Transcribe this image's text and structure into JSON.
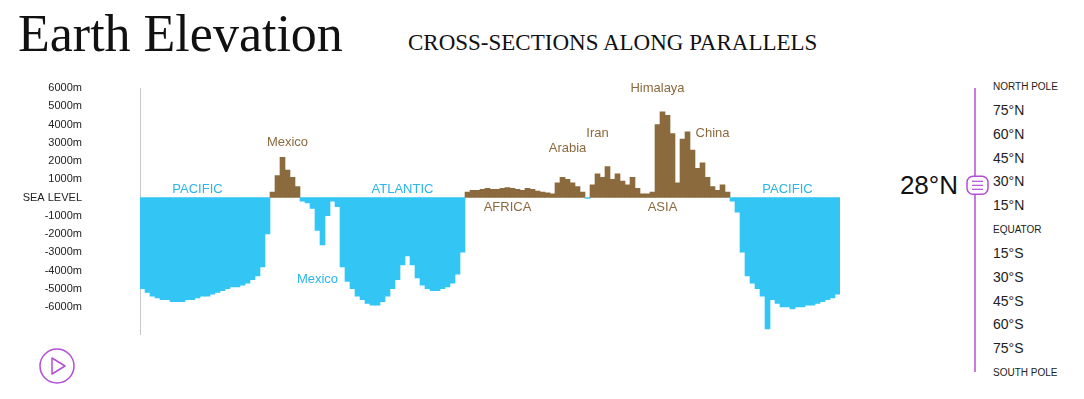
{
  "chart_data": {
    "type": "bar",
    "title": "Earth Elevation",
    "subtitle": "CROSS-SECTIONS ALONG PARALLELS",
    "categories": [
      null,
      null,
      null,
      null,
      null,
      null,
      null,
      null,
      null,
      null,
      null,
      null,
      null,
      null,
      null,
      null,
      null,
      null,
      null,
      null,
      null,
      null,
      null,
      null,
      null,
      null,
      null,
      null,
      null,
      null,
      null,
      null,
      null,
      null,
      null,
      null,
      null,
      null,
      null,
      null,
      null,
      null,
      null,
      null,
      null,
      null,
      null,
      null,
      null,
      null,
      null,
      null,
      null,
      null,
      null,
      null,
      null,
      null,
      null,
      null,
      null,
      null,
      null,
      null,
      null,
      null,
      null,
      null,
      null,
      null,
      null,
      null,
      null,
      null,
      null,
      null,
      null,
      null,
      null,
      null,
      null,
      null,
      null,
      null,
      null,
      null,
      null,
      null,
      null,
      null,
      null,
      null,
      null,
      null,
      null,
      null,
      null,
      null,
      null,
      null,
      null,
      null,
      null,
      null,
      null,
      null,
      null,
      null,
      null,
      null,
      null,
      null,
      null,
      null,
      null,
      null,
      null,
      null,
      null,
      null,
      null,
      null,
      null,
      null,
      null,
      null,
      null,
      null,
      null,
      null,
      null,
      null,
      null,
      null,
      null,
      null,
      null,
      null,
      null,
      null
    ],
    "values": [
      -5000,
      -5200,
      -5400,
      -5500,
      -5600,
      -5600,
      -5700,
      -5700,
      -5700,
      -5600,
      -5600,
      -5500,
      -5400,
      -5400,
      -5300,
      -5200,
      -5100,
      -5000,
      -4900,
      -4900,
      -4800,
      -4700,
      -4500,
      -4300,
      -3800,
      -2000,
      300,
      1200,
      2200,
      1500,
      1100,
      600,
      -200,
      -300,
      -600,
      -1800,
      -2600,
      -1000,
      -200,
      -500,
      -3800,
      -4600,
      -5000,
      -5400,
      -5600,
      -5800,
      -5900,
      -5900,
      -5700,
      -5400,
      -5000,
      -4500,
      -3700,
      -3200,
      -3700,
      -4400,
      -4800,
      -5000,
      -5100,
      -5100,
      -5000,
      -4900,
      -4700,
      -4200,
      -3000,
      300,
      400,
      400,
      450,
      500,
      450,
      450,
      500,
      550,
      500,
      450,
      400,
      500,
      450,
      350,
      300,
      250,
      200,
      800,
      1100,
      1000,
      800,
      600,
      300,
      -50,
      700,
      1300,
      1100,
      1700,
      1000,
      1300,
      900,
      700,
      1100,
      500,
      200,
      200,
      300,
      4000,
      4700,
      4500,
      3500,
      800,
      3200,
      3600,
      2600,
      1600,
      1900,
      1100,
      600,
      400,
      700,
      300,
      -200,
      -800,
      -3000,
      -4300,
      -4700,
      -5000,
      -5400,
      -7200,
      -5600,
      -5800,
      -6000,
      -6000,
      -6100,
      -6000,
      -6000,
      -5900,
      -5900,
      -5800,
      -5700,
      -5600,
      -5500,
      -5300
    ],
    "colors": [
      "#33c6f5",
      "#33c6f5",
      "#33c6f5",
      "#33c6f5",
      "#33c6f5",
      "#33c6f5",
      "#33c6f5",
      "#33c6f5",
      "#33c6f5",
      "#33c6f5",
      "#33c6f5",
      "#33c6f5",
      "#33c6f5",
      "#33c6f5",
      "#33c6f5",
      "#33c6f5",
      "#33c6f5",
      "#33c6f5",
      "#33c6f5",
      "#33c6f5",
      "#33c6f5",
      "#33c6f5",
      "#33c6f5",
      "#33c6f5",
      "#33c6f5",
      "#33c6f5",
      "#8b6a3e",
      "#8b6a3e",
      "#8b6a3e",
      "#8b6a3e",
      "#8b6a3e",
      "#8b6a3e",
      "#33c6f5",
      "#33c6f5",
      "#33c6f5",
      "#33c6f5",
      "#33c6f5",
      "#33c6f5",
      "#33c6f5",
      "#33c6f5",
      "#33c6f5",
      "#33c6f5",
      "#33c6f5",
      "#33c6f5",
      "#33c6f5",
      "#33c6f5",
      "#33c6f5",
      "#33c6f5",
      "#33c6f5",
      "#33c6f5",
      "#33c6f5",
      "#33c6f5",
      "#33c6f5",
      "#33c6f5",
      "#33c6f5",
      "#33c6f5",
      "#33c6f5",
      "#33c6f5",
      "#33c6f5",
      "#33c6f5",
      "#33c6f5",
      "#33c6f5",
      "#33c6f5",
      "#33c6f5",
      "#33c6f5",
      "#8b6a3e",
      "#8b6a3e",
      "#8b6a3e",
      "#8b6a3e",
      "#8b6a3e",
      "#8b6a3e",
      "#8b6a3e",
      "#8b6a3e",
      "#8b6a3e",
      "#8b6a3e",
      "#8b6a3e",
      "#8b6a3e",
      "#8b6a3e",
      "#8b6a3e",
      "#8b6a3e",
      "#8b6a3e",
      "#8b6a3e",
      "#8b6a3e",
      "#8b6a3e",
      "#8b6a3e",
      "#8b6a3e",
      "#8b6a3e",
      "#8b6a3e",
      "#8b6a3e",
      "#33c6f5",
      "#8b6a3e",
      "#8b6a3e",
      "#8b6a3e",
      "#8b6a3e",
      "#8b6a3e",
      "#8b6a3e",
      "#8b6a3e",
      "#8b6a3e",
      "#8b6a3e",
      "#8b6a3e",
      "#8b6a3e",
      "#8b6a3e",
      "#8b6a3e",
      "#8b6a3e",
      "#8b6a3e",
      "#8b6a3e",
      "#8b6a3e",
      "#8b6a3e",
      "#8b6a3e",
      "#8b6a3e",
      "#8b6a3e",
      "#8b6a3e",
      "#8b6a3e",
      "#8b6a3e",
      "#8b6a3e",
      "#8b6a3e",
      "#8b6a3e",
      "#8b6a3e",
      "#33c6f5",
      "#33c6f5",
      "#33c6f5",
      "#33c6f5",
      "#33c6f5",
      "#33c6f5",
      "#33c6f5",
      "#33c6f5",
      "#33c6f5",
      "#33c6f5",
      "#33c6f5",
      "#33c6f5",
      "#33c6f5",
      "#33c6f5",
      "#33c6f5",
      "#33c6f5",
      "#33c6f5",
      "#33c6f5",
      "#33c6f5",
      "#33c6f5",
      "#33c6f5",
      "#33c6f5"
    ],
    "ylim": [
      -7500,
      6000
    ],
    "yticks": [
      {
        "value": -6000,
        "label": "-6000m"
      },
      {
        "value": -5000,
        "label": "-5000m"
      },
      {
        "value": -4000,
        "label": "-4000m"
      },
      {
        "value": -3000,
        "label": "-3000m"
      },
      {
        "value": -2000,
        "label": "-2000m"
      },
      {
        "value": -1000,
        "label": "-1000m"
      },
      {
        "value": 0,
        "label": "SEA LEVEL"
      },
      {
        "value": 1000,
        "label": "1000m"
      },
      {
        "value": 2000,
        "label": "2000m"
      },
      {
        "value": 3000,
        "label": "3000m"
      },
      {
        "value": 4000,
        "label": "4000m"
      },
      {
        "value": 5000,
        "label": "5000m"
      },
      {
        "value": 6000,
        "label": "6000m"
      }
    ],
    "grid": false,
    "tick_labels": "y",
    "annotations": [
      {
        "text": "PACIFIC",
        "x": 11,
        "y": 450,
        "color": "#29b6e8"
      },
      {
        "text": "Mexico",
        "x": 29,
        "y": 3000,
        "color": "#8b6a3e"
      },
      {
        "text": "Mexico",
        "x": 35,
        "y": -4500,
        "color": "#29b6e8"
      },
      {
        "text": "ATLANTIC",
        "x": 52,
        "y": 450,
        "color": "#29b6e8"
      },
      {
        "text": "AFRICA",
        "x": 73,
        "y": -550,
        "color": "#8b6a3e"
      },
      {
        "text": "Arabia",
        "x": 85,
        "y": 2700,
        "color": "#8b6a3e"
      },
      {
        "text": "Iran",
        "x": 91,
        "y": 3500,
        "color": "#8b6a3e"
      },
      {
        "text": "Himalaya",
        "x": 103,
        "y": 6000,
        "color": "#8b6a3e"
      },
      {
        "text": "ASIA",
        "x": 104,
        "y": -550,
        "color": "#8b6a3e"
      },
      {
        "text": "China",
        "x": 114,
        "y": 3500,
        "color": "#8b6a3e"
      },
      {
        "text": "PACIFIC",
        "x": 129,
        "y": 450,
        "color": "#29b6e8"
      }
    ]
  },
  "latitude_selector": {
    "labels": [
      "NORTH POLE",
      "75°N",
      "60°N",
      "45°N",
      "30°N",
      "15°N",
      "EQUATOR",
      "15°S",
      "30°S",
      "45°S",
      "60°S",
      "75°S",
      "SOUTH POLE"
    ],
    "selected": "28°N"
  }
}
